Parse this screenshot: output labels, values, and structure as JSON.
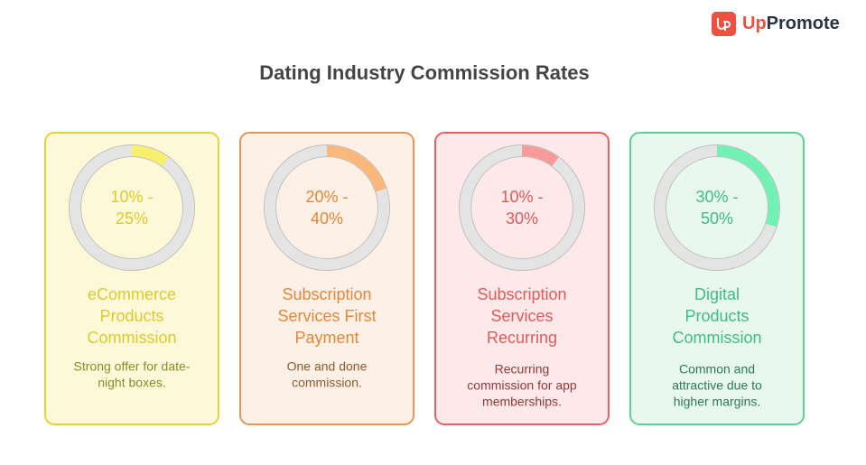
{
  "header": {
    "title": "Dating Industry Commission Rates",
    "logo_accent": "Up",
    "logo_rest": "Promote"
  },
  "cards": [
    {
      "rate_lines": [
        "10% -",
        "25%"
      ],
      "gauge": 10,
      "title_lines": [
        "eCommerce",
        "Products",
        "Commission"
      ],
      "description_lines": [
        "Strong offer for date-",
        "night boxes."
      ],
      "color": "#e2d43a",
      "arc_color": "#f6f06c",
      "bg": "#fdf9d8",
      "text_color": "#dccb2b",
      "desc_color": "#8d8a2c"
    },
    {
      "rate_lines": [
        "20% -",
        "40%"
      ],
      "gauge": 20,
      "title_lines": [
        "Subscription",
        "Services First",
        "Payment"
      ],
      "description_lines": [
        "One and done",
        "commission."
      ],
      "color": "#e2975a",
      "arc_color": "#fbb87a",
      "bg": "#fdf0e6",
      "text_color": "#e3883a",
      "desc_color": "#8f5a2c"
    },
    {
      "rate_lines": [
        "10% -",
        "30%"
      ],
      "gauge": 10,
      "title_lines": [
        "Subscription",
        "Services",
        "Recurring"
      ],
      "description_lines": [
        "Recurring",
        "commission for app",
        "memberships."
      ],
      "color": "#e06464",
      "arc_color": "#fb9a9a",
      "bg": "#fde9e9",
      "text_color": "#e25a5a",
      "desc_color": "#923a3a"
    },
    {
      "rate_lines": [
        "30% -",
        "50%"
      ],
      "gauge": 30,
      "title_lines": [
        "Digital",
        "Products",
        "Commission"
      ],
      "description_lines": [
        "Common and",
        "attractive due to",
        "higher margins."
      ],
      "color": "#60cf94",
      "arc_color": "#72f1b4",
      "bg": "#e8f8ef",
      "text_color": "#3fbd82",
      "desc_color": "#2e7a55"
    }
  ]
}
